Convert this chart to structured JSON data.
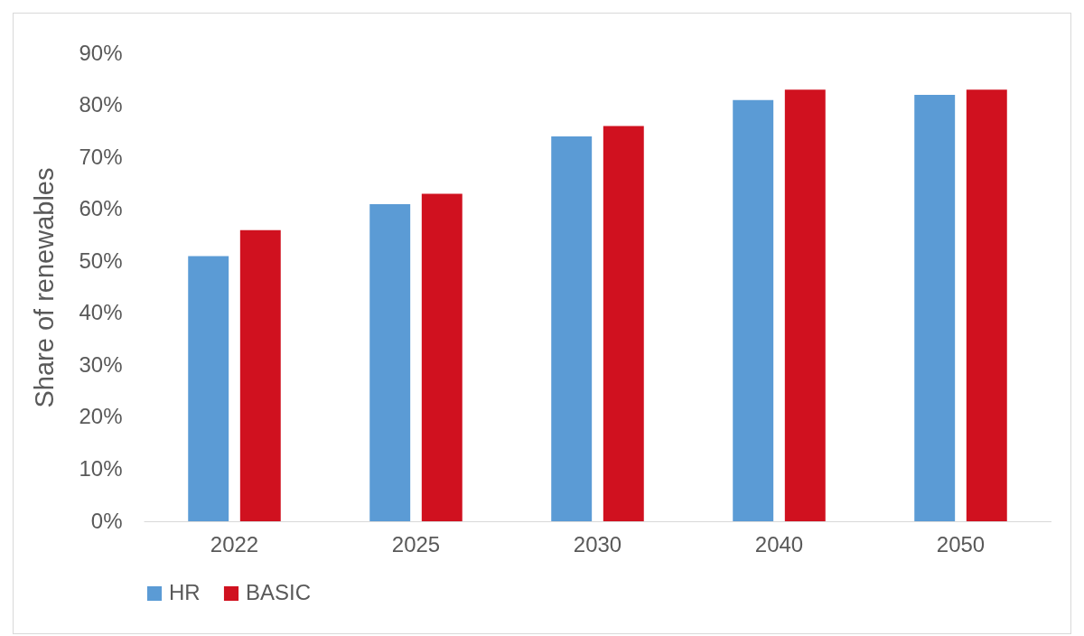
{
  "chart_data": {
    "type": "bar",
    "ylabel": "Share of renewables",
    "categories": [
      "2022",
      "2025",
      "2030",
      "2040",
      "2050"
    ],
    "series": [
      {
        "name": "HR",
        "color": "#5b9bd5",
        "values": [
          51,
          61,
          74,
          81,
          82
        ]
      },
      {
        "name": "BASIC",
        "color": "#d0111f",
        "values": [
          56,
          63,
          76,
          83,
          83
        ]
      }
    ],
    "ylim": [
      0,
      90
    ],
    "yticks": [
      {
        "value": 0,
        "label": "0%"
      },
      {
        "value": 10,
        "label": "10%"
      },
      {
        "value": 20,
        "label": "20%"
      },
      {
        "value": 30,
        "label": "30%"
      },
      {
        "value": 40,
        "label": "40%"
      },
      {
        "value": 50,
        "label": "50%"
      },
      {
        "value": 60,
        "label": "60%"
      },
      {
        "value": 70,
        "label": "70%"
      },
      {
        "value": 80,
        "label": "80%"
      },
      {
        "value": 90,
        "label": "90%"
      }
    ],
    "grid": false,
    "legend": "bottom"
  }
}
